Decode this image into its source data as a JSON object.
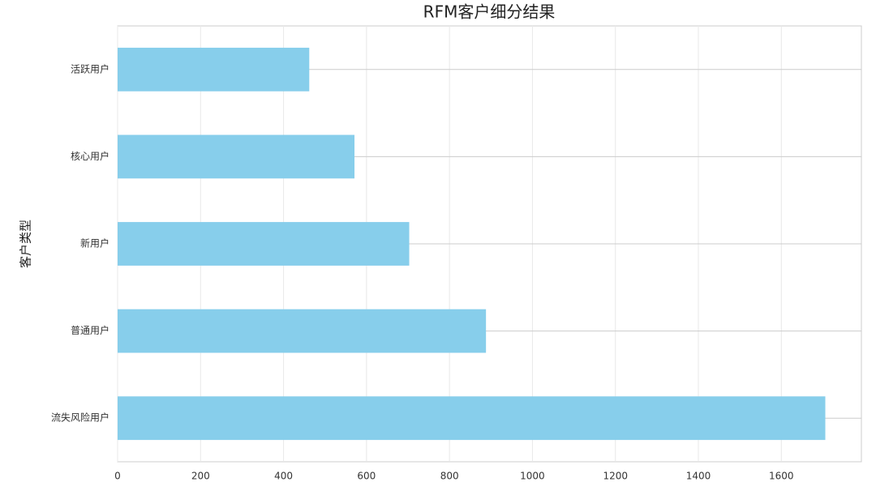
{
  "chart_data": {
    "type": "barh",
    "title": "RFM客户细分结果",
    "ylabel": "客户类型",
    "categories": [
      "活跃用户",
      "核心用户",
      "新用户",
      "普通用户",
      "流失风险用户"
    ],
    "values": [
      462,
      571,
      703,
      888,
      1706
    ],
    "color": "#87ceeb",
    "xlim": [
      0,
      1793
    ],
    "xticks": [
      0,
      200,
      400,
      600,
      800,
      1000,
      1200,
      1400,
      1600
    ],
    "grid": true
  }
}
